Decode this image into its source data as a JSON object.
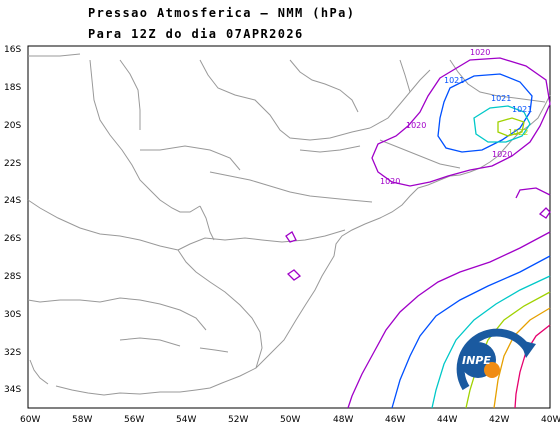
{
  "title": {
    "line1": "Pressao Atmosferica — NMM (hPa)",
    "line2": "Para 12Z do dia 07APR2026"
  },
  "axes": {
    "lon_labels": [
      "60W",
      "58W",
      "56W",
      "54W",
      "52W",
      "50W",
      "48W",
      "46W",
      "44W",
      "42W",
      "40W"
    ],
    "lat_labels": [
      "16S",
      "18S",
      "20S",
      "22S",
      "24S",
      "26S",
      "28S",
      "30S",
      "32S",
      "34S"
    ]
  },
  "contour_labels": [
    "1020",
    "1021",
    "1021",
    "1021",
    "1022",
    "1020",
    "1020",
    "1020"
  ],
  "colors": {
    "coast": "#999999",
    "c1020": "#a000c8",
    "c1021": "#0050ff",
    "c1022": "#00c8c8",
    "c1023": "#a0d200",
    "c1024": "#e6a000",
    "c1025": "#e6006e"
  },
  "logo": {
    "text": "INPE",
    "icon": "inpe-logo-icon"
  }
}
